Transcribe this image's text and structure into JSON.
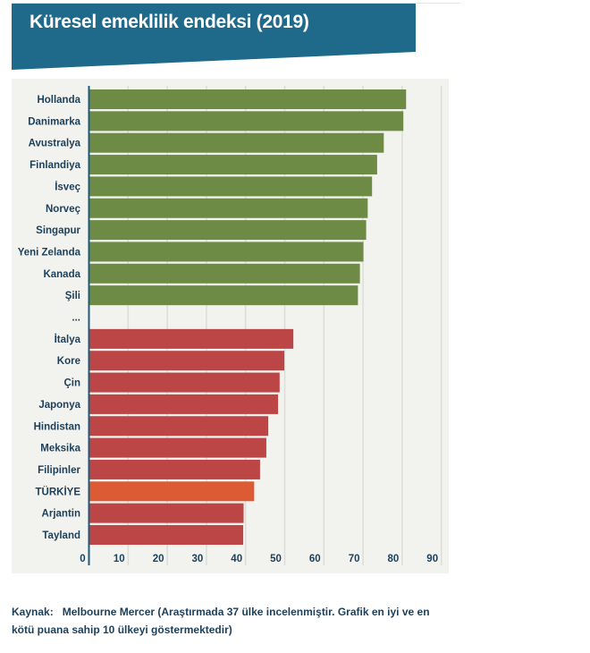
{
  "title": "Küresel emeklilik endeksi (2019)",
  "footer": {
    "source_label": "Kaynak:",
    "source_text": "Melbourne Mercer (Araştırmada 37 ülke incelenmiştir. Grafik en iyi ve en kötü puana sahip 10 ülkeyi göstermektedir)"
  },
  "colors": {
    "top": "#6d8b45",
    "bottom": "#bc4546",
    "highlight": "#dd5b34",
    "panel": "#f2f2ee",
    "banner": "#1f6a8a"
  },
  "chart_data": {
    "type": "bar",
    "orientation": "horizontal",
    "title": "Küresel emeklilik endeksi (2019)",
    "xlim": [
      0,
      90
    ],
    "xticks": [
      0,
      10,
      20,
      30,
      40,
      50,
      60,
      70,
      80,
      90
    ],
    "grid": true,
    "categories": [
      "Hollanda",
      "Danimarka",
      "Avustralya",
      "Finlandiya",
      "İsveç",
      "Norveç",
      "Singapur",
      "Yeni Zelanda",
      "Kanada",
      "Şili",
      "...",
      "İtalya",
      "Kore",
      "Çin",
      "Japonya",
      "Hindistan",
      "Meksika",
      "Filipinler",
      "TÜRKİYE",
      "Arjantin",
      "Tayland"
    ],
    "values": [
      81.0,
      80.3,
      75.3,
      73.6,
      72.3,
      71.2,
      70.8,
      70.1,
      69.2,
      68.7,
      null,
      52.2,
      49.9,
      48.7,
      48.3,
      45.8,
      45.3,
      43.7,
      42.2,
      39.5,
      39.4
    ],
    "groups": [
      "top",
      "top",
      "top",
      "top",
      "top",
      "top",
      "top",
      "top",
      "top",
      "top",
      "gap",
      "bottom",
      "bottom",
      "bottom",
      "bottom",
      "bottom",
      "bottom",
      "bottom",
      "highlight",
      "bottom",
      "bottom"
    ]
  }
}
